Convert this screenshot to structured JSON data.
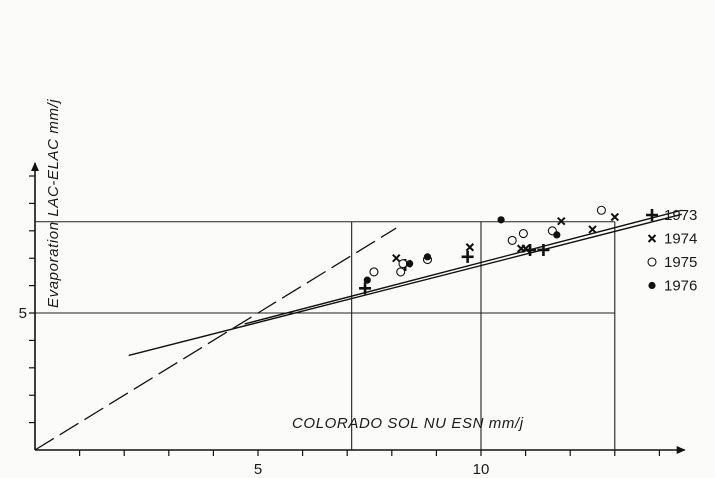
{
  "chart_data": {
    "type": "scatter",
    "xlabel": "COLORADO SOL NU ESN mm/j",
    "ylabel": "Evaporation LAC-ELAC mm/j",
    "xlim": [
      0,
      14.5
    ],
    "ylim": [
      0,
      10.4
    ],
    "x_ticks": [
      {
        "value": 5,
        "label": "5"
      },
      {
        "value": 10,
        "label": "10"
      }
    ],
    "y_ticks": [
      {
        "value": 5,
        "label": "5"
      }
    ],
    "reference_lines": {
      "horizontal": [
        5,
        8.33
      ],
      "vertical": [
        7.1,
        10,
        13
      ]
    },
    "dashed_line": {
      "x": [
        0,
        8.1
      ],
      "y": [
        0,
        8.1
      ]
    },
    "fit_lines": [
      {
        "x": [
          2.1,
          14.5
        ],
        "y": [
          3.45,
          8.6
        ]
      },
      {
        "x": [
          4.7,
          14.5
        ],
        "y": [
          4.6,
          8.75
        ]
      }
    ],
    "legend_position": "right",
    "series": [
      {
        "name": "1973",
        "marker": "plus",
        "color": "#111111",
        "x": [
          7.4,
          8.3,
          9.7,
          11.1,
          11.4
        ],
        "y": [
          5.9,
          6.75,
          7.05,
          7.3,
          7.3
        ]
      },
      {
        "name": "1974",
        "marker": "x",
        "color": "#111111",
        "x": [
          8.1,
          8.35,
          9.75,
          10.9,
          11.0,
          11.8,
          12.5,
          13.0
        ],
        "y": [
          7.0,
          6.8,
          7.4,
          7.35,
          7.35,
          8.35,
          8.05,
          8.5
        ]
      },
      {
        "name": "1975",
        "marker": "circle-open",
        "color": "#111111",
        "x": [
          7.6,
          8.2,
          8.25,
          8.8,
          10.7,
          10.95,
          11.6,
          12.7
        ],
        "y": [
          6.5,
          6.5,
          6.8,
          6.95,
          7.65,
          7.9,
          8.0,
          8.75
        ]
      },
      {
        "name": "1976",
        "marker": "circle-filled",
        "color": "#111111",
        "x": [
          7.45,
          8.4,
          8.8,
          10.45,
          11.7
        ],
        "y": [
          6.2,
          6.8,
          7.05,
          8.4,
          7.85
        ]
      }
    ]
  }
}
